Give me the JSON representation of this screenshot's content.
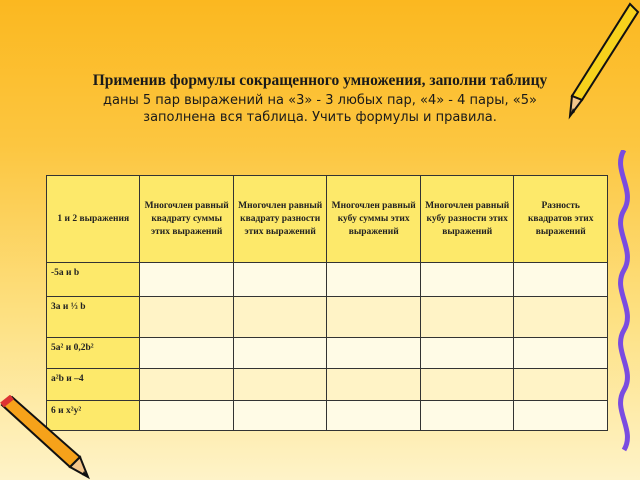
{
  "title": "Применив формулы сокращенного умножения, заполни таблицу",
  "subtitle": "даны 5 пар выражений на «3» -  3 любых пар, «4» - 4 пары, «5» заполнена вся таблица. Учить формулы и правила.",
  "table": {
    "headers": [
      "1 и 2 выражения",
      "Многочлен равный квадрату суммы этих выражений",
      "Многочлен равный квадрату разности этих выражений",
      "Многочлен равный кубу суммы этих выражений",
      "Многочлен равный кубу разности этих выражений",
      "Разность квадратов этих выражений"
    ],
    "rows": [
      {
        "label": "-5a и b"
      },
      {
        "label": "3a и ⅓ b"
      },
      {
        "label": "5a² и  0,2b²"
      },
      {
        "label": "a²b  и  –4"
      },
      {
        "label": "6 и x²y²"
      }
    ]
  },
  "decor": [
    "pencil-icon",
    "pencil-icon"
  ]
}
